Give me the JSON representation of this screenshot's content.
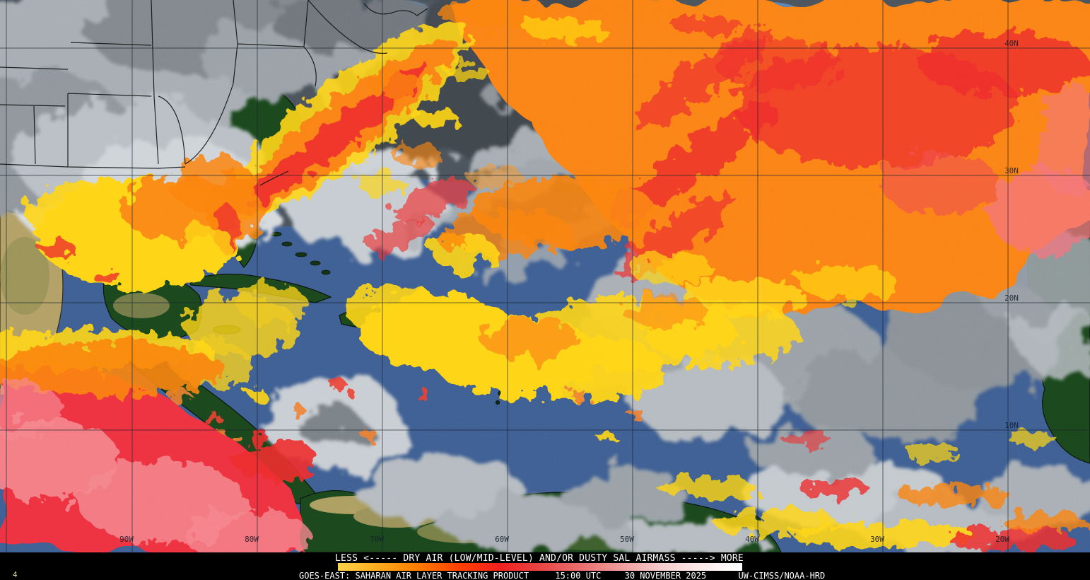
{
  "product": {
    "title_line": "GOES-EAST: SAHARAN AIR LAYER TRACKING PRODUCT",
    "time_utc": "15:00 UTC",
    "date": "30 NOVEMBER 2025",
    "credit": "UW-CIMSS/NOAA-HRD",
    "frame_number": "4"
  },
  "colorbar": {
    "label": "LESS <----- DRY AIR (LOW/MID-LEVEL) AND/OR DUSTY SAL AIRMASS -----> MORE",
    "gradient_stops": [
      "#ffd24a",
      "#ffaa1e",
      "#ff7a00",
      "#ff4000",
      "#f02020",
      "#e84545",
      "#ea6e6e",
      "#f09d9d",
      "#f6cccc",
      "#fdeaea",
      "#ffffff"
    ]
  },
  "map": {
    "latitude_labels": [
      "40N",
      "30N",
      "20N",
      "10N"
    ],
    "longitude_labels": [
      "90W",
      "80W",
      "70W",
      "60W",
      "50W",
      "40W",
      "30W",
      "20W"
    ],
    "colors": {
      "ocean": "#3f5f93",
      "cloud_gray": "#a9afb5",
      "land_green": "#1b471d",
      "land_tan": "#b3a066",
      "sal_yellow": "#ffd514",
      "sal_orange": "#fb8312",
      "sal_red": "#ee2d2d",
      "sal_pink": "#f5858d",
      "grid": "#16222e"
    }
  }
}
